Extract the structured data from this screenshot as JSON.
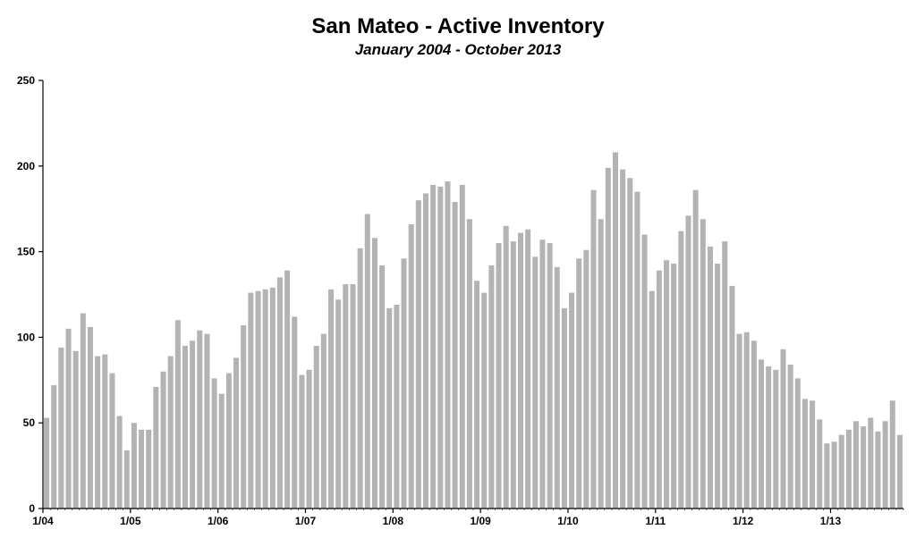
{
  "chart_data": {
    "type": "bar",
    "title": "San Mateo - Active Inventory",
    "subtitle": "January 2004 - October 2013",
    "bar_color": "#b3b3b3",
    "ylim": [
      0,
      250
    ],
    "y_ticks": [
      0,
      50,
      100,
      150,
      200,
      250
    ],
    "x_tick_labels": [
      "1/04",
      "1/05",
      "1/06",
      "1/07",
      "1/08",
      "1/09",
      "1/10",
      "1/11",
      "1/12",
      "1/13"
    ],
    "categories": [
      "2004-01",
      "2004-02",
      "2004-03",
      "2004-04",
      "2004-05",
      "2004-06",
      "2004-07",
      "2004-08",
      "2004-09",
      "2004-10",
      "2004-11",
      "2004-12",
      "2005-01",
      "2005-02",
      "2005-03",
      "2005-04",
      "2005-05",
      "2005-06",
      "2005-07",
      "2005-08",
      "2005-09",
      "2005-10",
      "2005-11",
      "2005-12",
      "2006-01",
      "2006-02",
      "2006-03",
      "2006-04",
      "2006-05",
      "2006-06",
      "2006-07",
      "2006-08",
      "2006-09",
      "2006-10",
      "2006-11",
      "2006-12",
      "2007-01",
      "2007-02",
      "2007-03",
      "2007-04",
      "2007-05",
      "2007-06",
      "2007-07",
      "2007-08",
      "2007-09",
      "2007-10",
      "2007-11",
      "2007-12",
      "2008-01",
      "2008-02",
      "2008-03",
      "2008-04",
      "2008-05",
      "2008-06",
      "2008-07",
      "2008-08",
      "2008-09",
      "2008-10",
      "2008-11",
      "2008-12",
      "2009-01",
      "2009-02",
      "2009-03",
      "2009-04",
      "2009-05",
      "2009-06",
      "2009-07",
      "2009-08",
      "2009-09",
      "2009-10",
      "2009-11",
      "2009-12",
      "2010-01",
      "2010-02",
      "2010-03",
      "2010-04",
      "2010-05",
      "2010-06",
      "2010-07",
      "2010-08",
      "2010-09",
      "2010-10",
      "2010-11",
      "2010-12",
      "2011-01",
      "2011-02",
      "2011-03",
      "2011-04",
      "2011-05",
      "2011-06",
      "2011-07",
      "2011-08",
      "2011-09",
      "2011-10",
      "2011-11",
      "2011-12",
      "2012-01",
      "2012-02",
      "2012-03",
      "2012-04",
      "2012-05",
      "2012-06",
      "2012-07",
      "2012-08",
      "2012-09",
      "2012-10",
      "2012-11",
      "2012-12",
      "2013-01",
      "2013-02",
      "2013-03",
      "2013-04",
      "2013-05",
      "2013-06",
      "2013-07",
      "2013-08",
      "2013-09",
      "2013-10"
    ],
    "values": [
      53,
      72,
      94,
      105,
      92,
      114,
      106,
      89,
      90,
      79,
      54,
      34,
      50,
      46,
      46,
      71,
      80,
      89,
      110,
      95,
      98,
      104,
      102,
      76,
      67,
      79,
      88,
      107,
      126,
      127,
      128,
      129,
      135,
      139,
      112,
      78,
      81,
      95,
      102,
      128,
      122,
      131,
      131,
      152,
      172,
      158,
      142,
      117,
      119,
      146,
      166,
      180,
      184,
      189,
      188,
      191,
      179,
      189,
      169,
      133,
      126,
      142,
      155,
      165,
      156,
      161,
      163,
      147,
      157,
      155,
      141,
      117,
      126,
      146,
      151,
      186,
      169,
      199,
      208,
      198,
      193,
      185,
      160,
      127,
      139,
      145,
      143,
      162,
      171,
      186,
      169,
      153,
      143,
      156,
      130,
      102,
      103,
      98,
      87,
      83,
      81,
      93,
      84,
      76,
      64,
      63,
      52,
      38,
      39,
      43,
      46,
      51,
      48,
      53,
      45,
      51,
      63,
      43
    ]
  }
}
